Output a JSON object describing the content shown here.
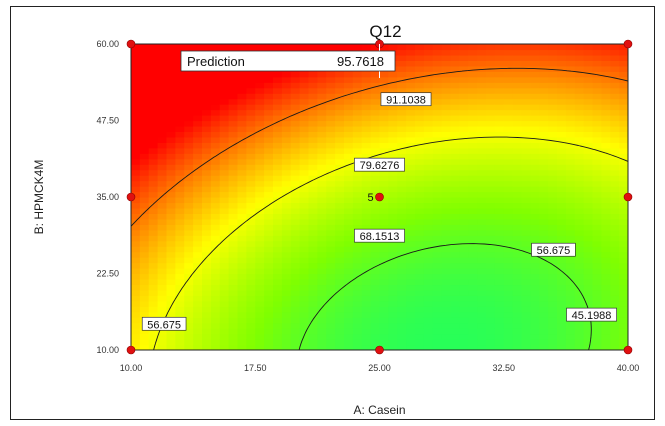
{
  "chart_data": {
    "type": "heatmap",
    "title": "Q12",
    "xlabel": "A: Casein",
    "ylabel": "B: HPMCK4M",
    "xlim": [
      10,
      40
    ],
    "ylim": [
      10,
      60
    ],
    "x_ticks": [
      "10.00",
      "17.50",
      "25.00",
      "32.50",
      "40.00"
    ],
    "y_ticks": [
      "10.00",
      "22.50",
      "35.00",
      "47.50",
      "60.00"
    ],
    "color_scale": [
      "#0020ff",
      "#00c8ff",
      "#00ff80",
      "#80ff00",
      "#ffff00",
      "#ff8000",
      "#ff0000"
    ],
    "contour_levels": [
      45.1988,
      56.675,
      68.1513,
      79.6276,
      91.1038
    ],
    "contour_labels": [
      {
        "text": "91.1038",
        "x": 26.6,
        "y": 50.9
      },
      {
        "text": "79.6276",
        "x": 25.0,
        "y": 40.2
      },
      {
        "text": "68.1513",
        "x": 25.0,
        "y": 28.6
      },
      {
        "text": "56.675",
        "x": 35.5,
        "y": 26.3
      },
      {
        "text": "56.675",
        "x": 12.0,
        "y": 14.2
      },
      {
        "text": "45.1988",
        "x": 37.8,
        "y": 15.7
      }
    ],
    "design_points": [
      {
        "x": 10,
        "y": 60
      },
      {
        "x": 25,
        "y": 60
      },
      {
        "x": 40,
        "y": 60
      },
      {
        "x": 10,
        "y": 35
      },
      {
        "x": 25,
        "y": 35
      },
      {
        "x": 40,
        "y": 35
      },
      {
        "x": 10,
        "y": 10
      },
      {
        "x": 25,
        "y": 10
      },
      {
        "x": 40,
        "y": 10
      }
    ],
    "center_point_label": {
      "text": "5",
      "x": 25,
      "y": 35
    },
    "prediction": {
      "label": "Prediction",
      "value": "95.7618",
      "x": 25,
      "y": 60
    },
    "grid": false
  }
}
